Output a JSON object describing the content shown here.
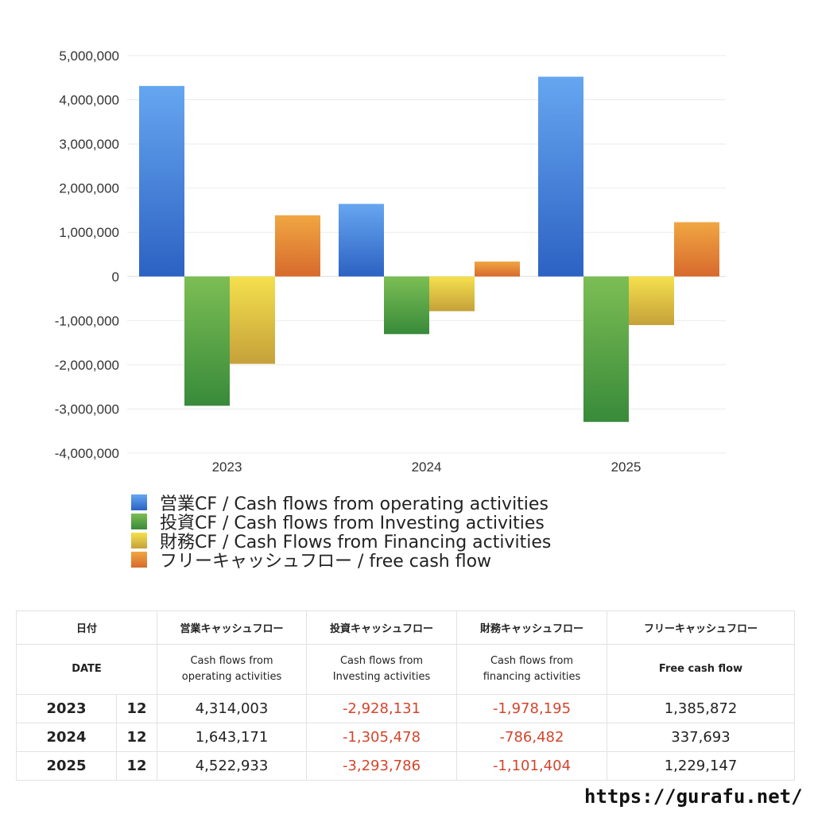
{
  "chart_data": {
    "type": "bar",
    "categories": [
      "2023",
      "2024",
      "2025"
    ],
    "ylim": [
      -4000000,
      5000000
    ],
    "yticks": [
      5000000,
      4000000,
      3000000,
      2000000,
      1000000,
      0,
      -1000000,
      -2000000,
      -3000000,
      -4000000
    ],
    "ytick_labels": [
      "5,000,000",
      "4,000,000",
      "3,000,000",
      "2,000,000",
      "1,000,000",
      "0",
      "-1,000,000",
      "-2,000,000",
      "-3,000,000",
      "-4,000,000"
    ],
    "grid": true,
    "legend_position": "bottom",
    "series": [
      {
        "name": "営業CF / Cash flows from operating activities",
        "color_top": "#66a6f0",
        "color_bottom": "#2c62c3",
        "values": [
          4314003,
          1643171,
          4522933
        ]
      },
      {
        "name": "投資CF / Cash flows from Investing activities",
        "color_top": "#7cbe54",
        "color_bottom": "#388a3a",
        "values": [
          -2928131,
          -1305478,
          -3293786
        ]
      },
      {
        "name": "財務CF / Cash Flows from Financing activities",
        "color_top": "#f5e04d",
        "color_bottom": "#c5a13a",
        "values": [
          -1978195,
          -786482,
          -1101404
        ]
      },
      {
        "name": "フリーキャッシュフロー / free cash flow",
        "color_top": "#f0a642",
        "color_bottom": "#d76a2d",
        "values": [
          1385872,
          337693,
          1229147
        ]
      }
    ]
  },
  "table": {
    "header1": [
      "日付",
      "営業キャッシュフロー",
      "投資キャッシュフロー",
      "財務キャッシュフロー",
      "フリーキャッシュフロー"
    ],
    "header2": [
      "DATE",
      "Cash flows from\noperating activities",
      "Cash flows from\nInvesting activities",
      "Cash flows from\nfinancing activities",
      "Free cash flow"
    ],
    "rows": [
      {
        "year": "2023",
        "month": "12",
        "operating": "4,314,003",
        "investing": "-2,928,131",
        "financing": "-1,978,195",
        "free": "1,385,872"
      },
      {
        "year": "2024",
        "month": "12",
        "operating": "1,643,171",
        "investing": "-1,305,478",
        "financing": "-786,482",
        "free": "337,693"
      },
      {
        "year": "2025",
        "month": "12",
        "operating": "4,522,933",
        "investing": "-3,293,786",
        "financing": "-1,101,404",
        "free": "1,229,147"
      }
    ]
  },
  "footer": {
    "url": "https://gurafu.net/"
  }
}
